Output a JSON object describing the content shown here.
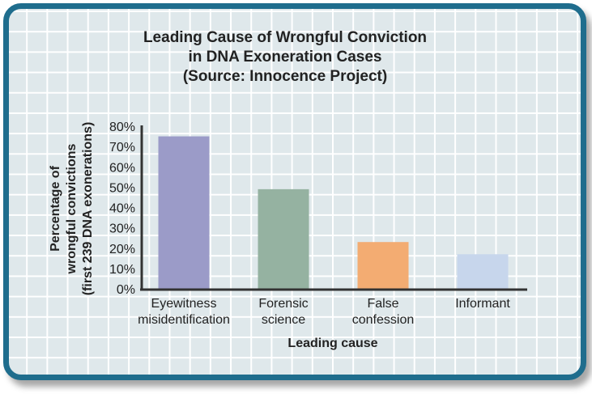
{
  "chart_data": {
    "type": "bar",
    "title": [
      "Leading Cause of Wrongful Conviction",
      "in DNA Exoneration Cases",
      "(Source: Innocence Project)"
    ],
    "xlabel": "Leading cause",
    "ylabel": [
      "Percentage of",
      "wrongful convictions",
      "(first 239 DNA exonerations)"
    ],
    "categories": [
      [
        "Eyewitness",
        "misidentification"
      ],
      [
        "Forensic",
        "science"
      ],
      [
        "False",
        "confession"
      ],
      [
        "Informant"
      ]
    ],
    "values": [
      75,
      49,
      23,
      17
    ],
    "colors": [
      "#9b9bc8",
      "#95b2a1",
      "#f3ac72",
      "#c7d6ec"
    ],
    "ylim": [
      0,
      80
    ],
    "yticks": [
      "0%",
      "10%",
      "20%",
      "30%",
      "40%",
      "50%",
      "60%",
      "70%",
      "80%"
    ],
    "grid": true,
    "legend": "none"
  }
}
